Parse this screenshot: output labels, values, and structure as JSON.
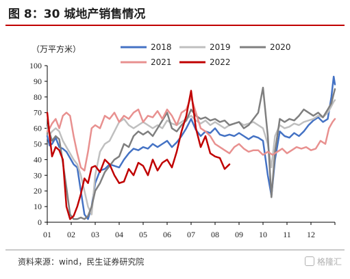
{
  "header": {
    "title": "图 8：30 城地产销售情况"
  },
  "footer": {
    "source": "资料来源：wind，民生证券研究院",
    "watermark": "格隆汇"
  },
  "chart_data": {
    "type": "line",
    "ylabel": "（万平方米）",
    "ylim": [
      0,
      100
    ],
    "yticks": [
      0,
      10,
      20,
      30,
      40,
      50,
      60,
      70,
      80,
      90,
      100
    ],
    "xlim": [
      1,
      13
    ],
    "xticks": [
      "01",
      "02",
      "03",
      "04",
      "05",
      "06",
      "07",
      "08",
      "09",
      "10",
      "11",
      "12"
    ],
    "grid": false,
    "legend_position": "top",
    "series": [
      {
        "name": "2018",
        "color": "#4472c4",
        "points": [
          [
            1.0,
            55
          ],
          [
            1.1,
            49
          ],
          [
            1.2,
            50
          ],
          [
            1.35,
            54
          ],
          [
            1.5,
            48
          ],
          [
            1.65,
            47
          ],
          [
            1.8,
            45
          ],
          [
            1.95,
            41
          ],
          [
            2.1,
            37
          ],
          [
            2.25,
            35
          ],
          [
            2.4,
            20
          ],
          [
            2.55,
            5
          ],
          [
            2.7,
            2
          ],
          [
            2.85,
            10
          ],
          [
            3.0,
            25
          ],
          [
            3.2,
            33
          ],
          [
            3.4,
            34
          ],
          [
            3.6,
            37
          ],
          [
            3.8,
            36
          ],
          [
            4.0,
            35
          ],
          [
            4.2,
            40
          ],
          [
            4.4,
            44
          ],
          [
            4.6,
            47
          ],
          [
            4.8,
            46
          ],
          [
            5.0,
            48
          ],
          [
            5.2,
            47
          ],
          [
            5.4,
            50
          ],
          [
            5.6,
            48
          ],
          [
            5.8,
            50
          ],
          [
            6.0,
            52
          ],
          [
            6.2,
            48
          ],
          [
            6.4,
            51
          ],
          [
            6.6,
            55
          ],
          [
            6.8,
            60
          ],
          [
            7.0,
            66
          ],
          [
            7.2,
            59
          ],
          [
            7.4,
            55
          ],
          [
            7.6,
            58
          ],
          [
            7.8,
            57
          ],
          [
            8.0,
            60
          ],
          [
            8.2,
            56
          ],
          [
            8.4,
            55
          ],
          [
            8.6,
            56
          ],
          [
            8.8,
            55
          ],
          [
            9.0,
            57
          ],
          [
            9.2,
            55
          ],
          [
            9.4,
            53
          ],
          [
            9.6,
            55
          ],
          [
            9.8,
            54
          ],
          [
            10.0,
            52
          ],
          [
            10.2,
            30
          ],
          [
            10.35,
            17
          ],
          [
            10.5,
            40
          ],
          [
            10.7,
            58
          ],
          [
            10.9,
            55
          ],
          [
            11.1,
            54
          ],
          [
            11.3,
            57
          ],
          [
            11.5,
            55
          ],
          [
            11.7,
            58
          ],
          [
            11.9,
            62
          ],
          [
            12.1,
            65
          ],
          [
            12.3,
            67
          ],
          [
            12.5,
            64
          ],
          [
            12.7,
            66
          ],
          [
            12.85,
            80
          ],
          [
            12.95,
            93
          ],
          [
            13.0,
            88
          ]
        ]
      },
      {
        "name": "2019",
        "color": "#bfbfbf",
        "points": [
          [
            1.0,
            60
          ],
          [
            1.1,
            56
          ],
          [
            1.2,
            58
          ],
          [
            1.35,
            60
          ],
          [
            1.5,
            58
          ],
          [
            1.65,
            52
          ],
          [
            1.8,
            48
          ],
          [
            1.95,
            44
          ],
          [
            2.1,
            40
          ],
          [
            2.25,
            37
          ],
          [
            2.4,
            30
          ],
          [
            2.55,
            20
          ],
          [
            2.7,
            10
          ],
          [
            2.85,
            5
          ],
          [
            3.0,
            30
          ],
          [
            3.2,
            45
          ],
          [
            3.4,
            50
          ],
          [
            3.6,
            52
          ],
          [
            3.8,
            58
          ],
          [
            4.0,
            64
          ],
          [
            4.2,
            66
          ],
          [
            4.4,
            62
          ],
          [
            4.6,
            60
          ],
          [
            4.8,
            62
          ],
          [
            5.0,
            64
          ],
          [
            5.2,
            62
          ],
          [
            5.4,
            60
          ],
          [
            5.6,
            62
          ],
          [
            5.8,
            60
          ],
          [
            6.0,
            65
          ],
          [
            6.2,
            63
          ],
          [
            6.4,
            62
          ],
          [
            6.6,
            64
          ],
          [
            6.8,
            66
          ],
          [
            7.0,
            68
          ],
          [
            7.2,
            65
          ],
          [
            7.4,
            63
          ],
          [
            7.6,
            65
          ],
          [
            7.8,
            62
          ],
          [
            8.0,
            64
          ],
          [
            8.2,
            62
          ],
          [
            8.4,
            60
          ],
          [
            8.6,
            62
          ],
          [
            8.8,
            63
          ],
          [
            9.0,
            64
          ],
          [
            9.2,
            62
          ],
          [
            9.4,
            63
          ],
          [
            9.6,
            64
          ],
          [
            9.8,
            62
          ],
          [
            10.0,
            60
          ],
          [
            10.2,
            50
          ],
          [
            10.35,
            35
          ],
          [
            10.5,
            55
          ],
          [
            10.7,
            62
          ],
          [
            10.9,
            60
          ],
          [
            11.1,
            61
          ],
          [
            11.3,
            63
          ],
          [
            11.5,
            62
          ],
          [
            11.7,
            64
          ],
          [
            11.9,
            65
          ],
          [
            12.1,
            66
          ],
          [
            12.3,
            68
          ],
          [
            12.5,
            67
          ],
          [
            12.7,
            70
          ],
          [
            12.85,
            74
          ],
          [
            12.95,
            77
          ],
          [
            13.0,
            78
          ]
        ]
      },
      {
        "name": "2020",
        "color": "#7f7f7f",
        "points": [
          [
            1.0,
            62
          ],
          [
            1.1,
            57
          ],
          [
            1.2,
            52
          ],
          [
            1.35,
            55
          ],
          [
            1.5,
            53
          ],
          [
            1.65,
            38
          ],
          [
            1.8,
            22
          ],
          [
            1.95,
            5
          ],
          [
            2.1,
            2
          ],
          [
            2.25,
            2
          ],
          [
            2.4,
            3
          ],
          [
            2.55,
            2
          ],
          [
            2.7,
            4
          ],
          [
            2.85,
            10
          ],
          [
            3.0,
            20
          ],
          [
            3.2,
            25
          ],
          [
            3.4,
            32
          ],
          [
            3.6,
            36
          ],
          [
            3.8,
            40
          ],
          [
            4.0,
            42
          ],
          [
            4.2,
            50
          ],
          [
            4.4,
            48
          ],
          [
            4.6,
            55
          ],
          [
            4.8,
            58
          ],
          [
            5.0,
            56
          ],
          [
            5.2,
            58
          ],
          [
            5.4,
            55
          ],
          [
            5.6,
            60
          ],
          [
            5.8,
            65
          ],
          [
            6.0,
            70
          ],
          [
            6.2,
            60
          ],
          [
            6.4,
            58
          ],
          [
            6.6,
            62
          ],
          [
            6.8,
            65
          ],
          [
            7.0,
            72
          ],
          [
            7.2,
            68
          ],
          [
            7.4,
            66
          ],
          [
            7.6,
            67
          ],
          [
            7.8,
            65
          ],
          [
            8.0,
            66
          ],
          [
            8.2,
            64
          ],
          [
            8.4,
            65
          ],
          [
            8.6,
            62
          ],
          [
            8.8,
            63
          ],
          [
            9.0,
            64
          ],
          [
            9.2,
            60
          ],
          [
            9.4,
            62
          ],
          [
            9.6,
            66
          ],
          [
            9.8,
            70
          ],
          [
            10.0,
            86
          ],
          [
            10.2,
            55
          ],
          [
            10.35,
            16
          ],
          [
            10.5,
            45
          ],
          [
            10.7,
            66
          ],
          [
            10.9,
            64
          ],
          [
            11.1,
            66
          ],
          [
            11.3,
            65
          ],
          [
            11.5,
            68
          ],
          [
            11.7,
            72
          ],
          [
            11.9,
            70
          ],
          [
            12.1,
            68
          ],
          [
            12.3,
            70
          ],
          [
            12.5,
            67
          ],
          [
            12.7,
            72
          ],
          [
            12.85,
            76
          ],
          [
            12.95,
            82
          ],
          [
            13.0,
            85
          ]
        ]
      },
      {
        "name": "2021",
        "color": "#e8908f",
        "points": [
          [
            1.0,
            58
          ],
          [
            1.1,
            60
          ],
          [
            1.2,
            63
          ],
          [
            1.35,
            66
          ],
          [
            1.5,
            60
          ],
          [
            1.65,
            68
          ],
          [
            1.8,
            70
          ],
          [
            1.95,
            68
          ],
          [
            2.1,
            55
          ],
          [
            2.25,
            44
          ],
          [
            2.4,
            35
          ],
          [
            2.55,
            33
          ],
          [
            2.7,
            45
          ],
          [
            2.85,
            60
          ],
          [
            3.0,
            62
          ],
          [
            3.2,
            60
          ],
          [
            3.4,
            68
          ],
          [
            3.6,
            66
          ],
          [
            3.8,
            70
          ],
          [
            4.0,
            64
          ],
          [
            4.2,
            68
          ],
          [
            4.4,
            66
          ],
          [
            4.6,
            70
          ],
          [
            4.8,
            72
          ],
          [
            5.0,
            64
          ],
          [
            5.2,
            68
          ],
          [
            5.4,
            67
          ],
          [
            5.6,
            71
          ],
          [
            5.8,
            66
          ],
          [
            6.0,
            72
          ],
          [
            6.2,
            68
          ],
          [
            6.4,
            62
          ],
          [
            6.6,
            70
          ],
          [
            6.8,
            72
          ],
          [
            7.0,
            80
          ],
          [
            7.2,
            70
          ],
          [
            7.4,
            60
          ],
          [
            7.6,
            58
          ],
          [
            7.8,
            55
          ],
          [
            8.0,
            50
          ],
          [
            8.2,
            48
          ],
          [
            8.4,
            46
          ],
          [
            8.6,
            44
          ],
          [
            8.8,
            48
          ],
          [
            9.0,
            50
          ],
          [
            9.2,
            47
          ],
          [
            9.4,
            45
          ],
          [
            9.6,
            46
          ],
          [
            9.8,
            46
          ],
          [
            10.0,
            43
          ],
          [
            10.2,
            45
          ],
          [
            10.4,
            43
          ],
          [
            10.6,
            45
          ],
          [
            10.8,
            47
          ],
          [
            11.0,
            44
          ],
          [
            11.2,
            46
          ],
          [
            11.4,
            48
          ],
          [
            11.6,
            47
          ],
          [
            11.8,
            48
          ],
          [
            12.0,
            46
          ],
          [
            12.2,
            47
          ],
          [
            12.4,
            52
          ],
          [
            12.6,
            50
          ],
          [
            12.75,
            60
          ],
          [
            12.9,
            64
          ],
          [
            13.0,
            66
          ]
        ]
      },
      {
        "name": "2022",
        "color": "#c00000",
        "points": [
          [
            1.0,
            70
          ],
          [
            1.1,
            55
          ],
          [
            1.2,
            42
          ],
          [
            1.35,
            48
          ],
          [
            1.5,
            46
          ],
          [
            1.65,
            40
          ],
          [
            1.8,
            10
          ],
          [
            1.95,
            2
          ],
          [
            2.1,
            4
          ],
          [
            2.25,
            10
          ],
          [
            2.4,
            18
          ],
          [
            2.55,
            28
          ],
          [
            2.7,
            25
          ],
          [
            2.85,
            35
          ],
          [
            3.0,
            36
          ],
          [
            3.2,
            32
          ],
          [
            3.4,
            40
          ],
          [
            3.6,
            37
          ],
          [
            3.8,
            30
          ],
          [
            4.0,
            25
          ],
          [
            4.2,
            26
          ],
          [
            4.4,
            34
          ],
          [
            4.6,
            30
          ],
          [
            4.8,
            38
          ],
          [
            5.0,
            36
          ],
          [
            5.2,
            30
          ],
          [
            5.4,
            40
          ],
          [
            5.6,
            33
          ],
          [
            5.8,
            38
          ],
          [
            6.0,
            40
          ],
          [
            6.2,
            35
          ],
          [
            6.4,
            45
          ],
          [
            6.6,
            58
          ],
          [
            6.8,
            68
          ],
          [
            7.0,
            84
          ],
          [
            7.2,
            60
          ],
          [
            7.4,
            48
          ],
          [
            7.6,
            55
          ],
          [
            7.8,
            44
          ],
          [
            8.0,
            42
          ],
          [
            8.2,
            41
          ],
          [
            8.4,
            34
          ],
          [
            8.6,
            37
          ]
        ]
      }
    ]
  }
}
